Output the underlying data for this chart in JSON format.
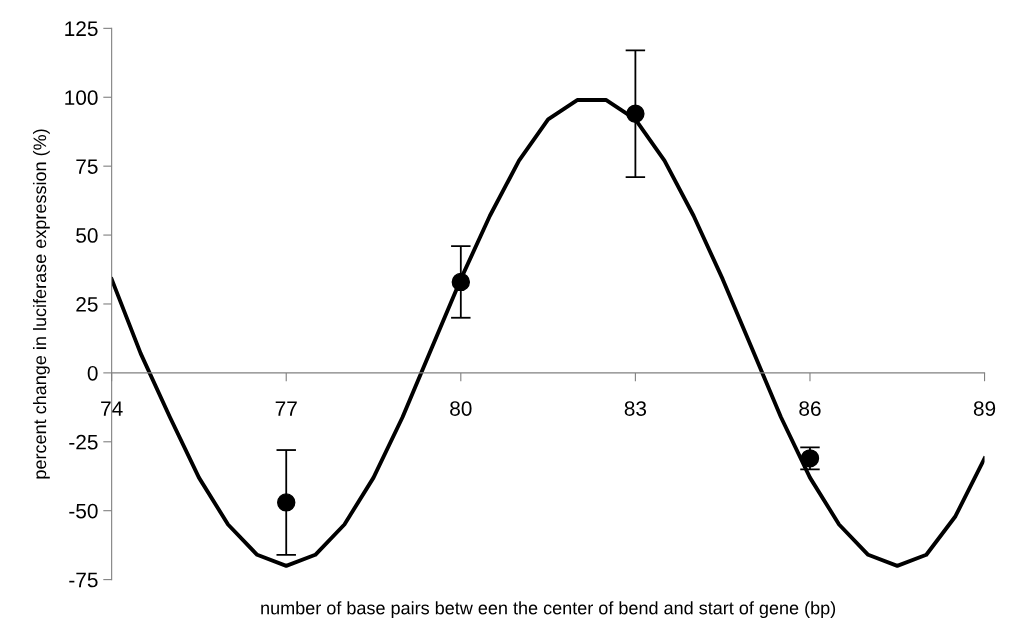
{
  "chart_data": {
    "type": "scatter",
    "xlabel": "number of base pairs betw een the center of bend and start of gene (bp)",
    "ylabel": "percent change in luciferase expression (%)",
    "xlim": [
      74,
      89
    ],
    "xticks": [
      74,
      77,
      80,
      83,
      86,
      89
    ],
    "ylim": [
      -75,
      125
    ],
    "yticks": [
      -75,
      -50,
      -25,
      0,
      25,
      50,
      75,
      100,
      125
    ],
    "series": [
      {
        "type": "line",
        "color": "#000000",
        "marker": "none",
        "x": [
          74,
          74.5,
          75,
          75.5,
          76,
          76.5,
          77,
          77.5,
          78,
          78.5,
          79,
          79.5,
          80,
          80.5,
          81,
          81.5,
          82,
          82.5,
          83,
          83.5,
          84,
          84.5,
          85,
          85.5,
          86,
          86.5,
          87,
          87.5,
          88,
          88.5,
          89
        ],
        "values": [
          34,
          7,
          -16,
          -38,
          -55,
          -66,
          -70,
          -66,
          -55,
          -38,
          -16,
          9,
          34,
          57,
          77,
          92,
          99,
          99,
          92,
          77,
          57,
          34,
          9,
          -16,
          -38,
          -55,
          -66,
          -70,
          -66,
          -52,
          -31
        ]
      },
      {
        "color": "#000000",
        "marker": "circle",
        "x": [
          77,
          80,
          83,
          86
        ],
        "values": [
          -47,
          33,
          94,
          -31
        ],
        "errors": [
          19,
          13,
          23,
          4
        ]
      }
    ]
  }
}
